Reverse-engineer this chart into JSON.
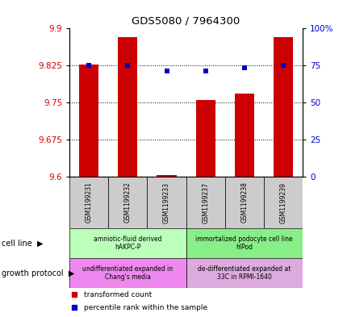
{
  "title": "GDS5080 / 7964300",
  "samples": [
    "GSM1199231",
    "GSM1199232",
    "GSM1199233",
    "GSM1199237",
    "GSM1199238",
    "GSM1199239"
  ],
  "bar_bottoms": [
    9.6,
    9.6,
    9.6,
    9.6,
    9.6,
    9.6
  ],
  "bar_tops": [
    9.828,
    9.882,
    9.604,
    9.755,
    9.768,
    9.882
  ],
  "blue_y": [
    9.825,
    9.825,
    9.814,
    9.815,
    9.82,
    9.825
  ],
  "ylim": [
    9.6,
    9.9
  ],
  "y_ticks": [
    9.6,
    9.675,
    9.75,
    9.825,
    9.9
  ],
  "y_tick_labels": [
    "9.6",
    "9.675",
    "9.75",
    "9.825",
    "9.9"
  ],
  "right_ticks": [
    0,
    25,
    50,
    75,
    100
  ],
  "right_tick_labels": [
    "0",
    "25",
    "50",
    "75",
    "100%"
  ],
  "bar_color": "#cc0000",
  "blue_color": "#0000cc",
  "grid_color": "#000000",
  "cell_line_groups": [
    {
      "label": "amniotic-fluid derived\nhAKPC-P",
      "samples": [
        0,
        1,
        2
      ],
      "color": "#bbffbb"
    },
    {
      "label": "immortalized podocyte cell line\nhIPod",
      "samples": [
        3,
        4,
        5
      ],
      "color": "#88ee88"
    }
  ],
  "growth_protocol_groups": [
    {
      "label": "undifferentiated expanded in\nChang's media",
      "samples": [
        0,
        1,
        2
      ],
      "color": "#ee88ee"
    },
    {
      "label": "de-differentiated expanded at\n33C in RPMI-1640",
      "samples": [
        3,
        4,
        5
      ],
      "color": "#ddaadd"
    }
  ],
  "tick_label_color_left": "#cc0000",
  "tick_label_color_right": "#0000cc",
  "sample_bg": "#cccccc",
  "legend_red_label": "transformed count",
  "legend_blue_label": "percentile rank within the sample",
  "cell_line_label": "cell line",
  "growth_protocol_label": "growth protocol"
}
